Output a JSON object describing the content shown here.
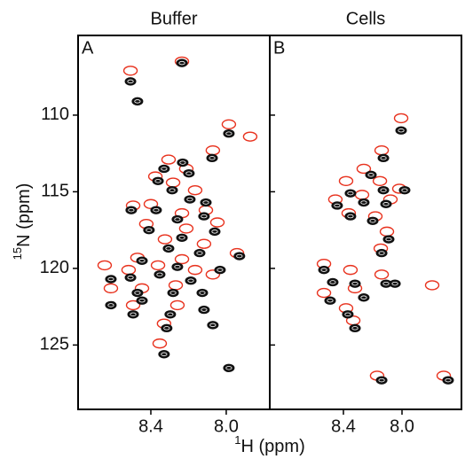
{
  "axis_labels": {
    "y_sup": "15",
    "y_text": "N (ppm)",
    "x_sup": "1",
    "x_text": "H (ppm)"
  },
  "chart_data": [
    {
      "type": "scatter",
      "title": "Buffer",
      "label": "A",
      "xlim": [
        8.786,
        7.769
      ],
      "xticks": [
        8.4,
        {
          "value": 8,
          "label": "8.0"
        }
      ],
      "ylim": [
        104.8,
        129.2
      ],
      "yticks": [
        110,
        115,
        120,
        125
      ],
      "series": [
        {
          "color": "#e8321e",
          "x": [
            8.508,
            8.235,
            7.986,
            8.071,
            8.306,
            8.212,
            8.376,
            8.282,
            8.165,
            8.494,
            8.4,
            8.235,
            8.108,
            8.424,
            8.212,
            8.047,
            8.325,
            8.118,
            8.471,
            8.235,
            7.943,
            8.645,
            8.518,
            8.362,
            8.165,
            8.612,
            8.447,
            8.268,
            8.071,
            8.494,
            8.259,
            8.33,
            8.353,
            7.873
          ],
          "values": [
            107.1,
            106.5,
            110.6,
            112.3,
            112.9,
            113.5,
            114.0,
            114.4,
            114.9,
            115.9,
            115.8,
            116.4,
            116.2,
            117.1,
            117.4,
            117.0,
            118.1,
            118.4,
            119.3,
            119.4,
            119.0,
            119.8,
            120.1,
            119.8,
            120.1,
            121.3,
            121.3,
            121.1,
            120.4,
            122.4,
            122.4,
            123.6,
            124.9,
            111.4
          ]
        },
        {
          "color": "#111111",
          "x": [
            8.508,
            8.471,
            8.235,
            7.986,
            8.075,
            8.231,
            8.33,
            8.198,
            8.362,
            8.287,
            8.193,
            8.108,
            8.504,
            8.372,
            8.259,
            8.118,
            8.41,
            8.235,
            8.061,
            8.306,
            8.141,
            8.447,
            8.259,
            7.93,
            8.508,
            8.353,
            8.188,
            8.033,
            8.612,
            8.471,
            8.282,
            8.127,
            8.612,
            8.447,
            8.297,
            8.494,
            8.118,
            8.316,
            8.071,
            8.33,
            7.986
          ],
          "values": [
            107.8,
            109.1,
            106.6,
            111.2,
            112.8,
            113.1,
            113.5,
            113.8,
            114.3,
            114.9,
            115.5,
            115.7,
            116.2,
            116.2,
            116.8,
            116.6,
            117.5,
            118.0,
            117.6,
            118.7,
            119.0,
            119.5,
            119.9,
            119.2,
            120.6,
            120.4,
            120.8,
            120.1,
            120.7,
            121.6,
            121.6,
            121.6,
            122.4,
            122.1,
            123.0,
            123.0,
            122.7,
            123.9,
            123.7,
            125.6,
            126.5
          ]
        }
      ]
    },
    {
      "type": "scatter",
      "title": "Cells",
      "label": "B",
      "xlim": [
        8.903,
        7.594
      ],
      "xticks": [
        8.4,
        {
          "value": 8,
          "label": "8.0"
        }
      ],
      "ylim": [
        104.8,
        129.2
      ],
      "yticks": [
        110,
        115,
        120,
        125
      ],
      "series": [
        {
          "color": "#e8321e",
          "x": [
            8.006,
            8.139,
            8.261,
            8.018,
            8.382,
            8.151,
            8.455,
            8.273,
            8.079,
            8.364,
            8.182,
            8.103,
            8.145,
            8.533,
            8.352,
            8.139,
            8.533,
            8.321,
            8.382,
            8.333,
            7.794,
            8.17,
            7.715
          ],
          "values": [
            110.2,
            112.3,
            113.5,
            114.8,
            114.3,
            114.3,
            115.5,
            115.2,
            115.5,
            116.4,
            116.6,
            117.6,
            118.7,
            119.7,
            120.1,
            120.4,
            121.6,
            121.3,
            122.6,
            123.4,
            121.1,
            127.0,
            127.0
          ]
        },
        {
          "color": "#111111",
          "x": [
            8.006,
            8.127,
            8.212,
            7.982,
            8.352,
            8.127,
            8.443,
            8.261,
            8.109,
            8.352,
            8.2,
            8.091,
            8.139,
            8.473,
            8.321,
            8.109,
            8.491,
            8.261,
            8.37,
            8.321,
            8.048,
            8.533,
            8.139,
            7.685
          ],
          "values": [
            111.0,
            112.8,
            113.9,
            114.9,
            115.1,
            114.9,
            115.9,
            115.7,
            115.8,
            116.6,
            116.9,
            118.1,
            119.0,
            120.9,
            121.0,
            121.0,
            122.1,
            121.9,
            123.0,
            123.9,
            121.0,
            120.1,
            127.3,
            127.3
          ]
        }
      ]
    }
  ]
}
